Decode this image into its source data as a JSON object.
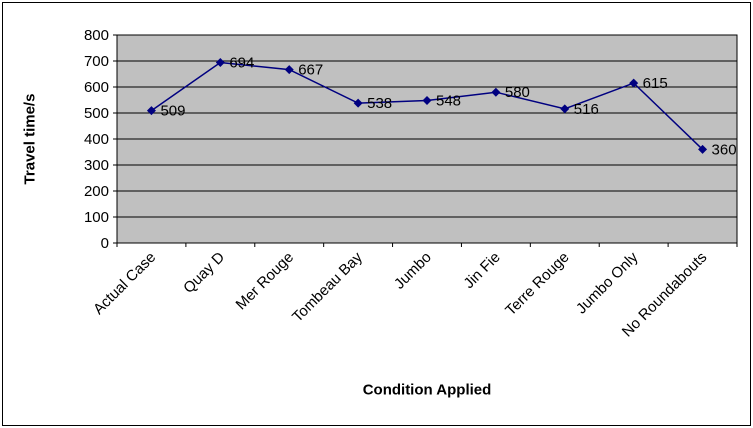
{
  "chart_data": {
    "type": "line",
    "categories": [
      "Actual Case",
      "Quay D",
      "Mer Rouge",
      "Tombeau Bay",
      "Jumbo",
      "Jin Fie",
      "Terre Rouge",
      "Jumbo Only",
      "No Roundabouts"
    ],
    "values": [
      509,
      694,
      667,
      538,
      548,
      580,
      516,
      615,
      360
    ],
    "xlabel": "Condition Applied",
    "ylabel": "Travel time/s",
    "ylim": [
      0,
      800
    ],
    "ytick_step": 100,
    "grid": true,
    "legend": false,
    "category_label_rotation": -45,
    "colors": {
      "line": "#000080",
      "marker": "#000080",
      "plot_bg": "#c0c0c0",
      "gridline": "#000000",
      "axis": "#000000",
      "text": "#000000"
    }
  }
}
